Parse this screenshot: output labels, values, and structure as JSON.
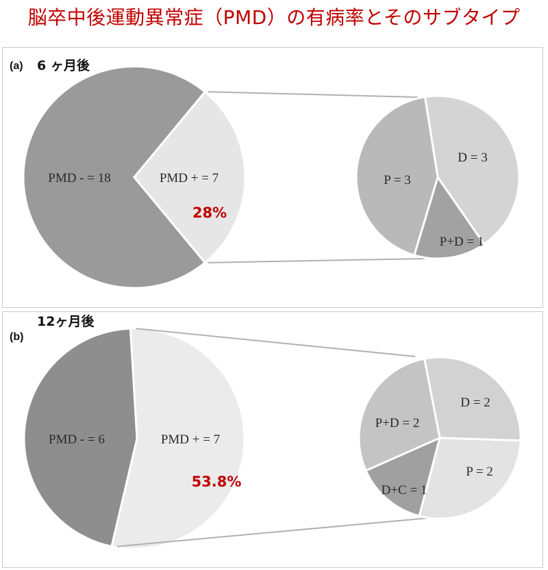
{
  "title": "脳卒中後運動異常症（PMD）の有病率とそのサブタイプ",
  "panels": {
    "a": {
      "tag": "(a)",
      "heading": "6 ヶ月後"
    },
    "b": {
      "tag": "(b)",
      "heading": "12ヶ月後"
    }
  },
  "chart_data": [
    {
      "type": "pie",
      "panel": "a",
      "main": {
        "slices": [
          {
            "label": "PMD - = 18",
            "value": 18,
            "color": "#9a9a9a"
          },
          {
            "label": "PMD + = 7",
            "value": 7,
            "color": "#e6e6e6"
          }
        ],
        "annotation": "28%"
      },
      "breakdown": {
        "slices": [
          {
            "label": "D = 3",
            "value": 3,
            "color": "#d4d4d4"
          },
          {
            "label": "P+D = 1",
            "value": 1,
            "color": "#a2a2a2"
          },
          {
            "label": "P = 3",
            "value": 3,
            "color": "#b9b9b9"
          }
        ]
      }
    },
    {
      "type": "pie",
      "panel": "b",
      "main": {
        "slices": [
          {
            "label": "PMD + = 7",
            "value": 7,
            "color": "#ebebeb"
          },
          {
            "label": "PMD - = 6",
            "value": 6,
            "color": "#8e8e8e"
          }
        ],
        "annotation": "53.8%"
      },
      "breakdown": {
        "slices": [
          {
            "label": "D = 2",
            "value": 2,
            "color": "#d2d2d2"
          },
          {
            "label": "P = 2",
            "value": 2,
            "color": "#e3e3e3"
          },
          {
            "label": "D+C = 1",
            "value": 1,
            "color": "#a0a0a0"
          },
          {
            "label": "P+D = 2",
            "value": 2,
            "color": "#c4c4c4"
          }
        ]
      }
    }
  ]
}
